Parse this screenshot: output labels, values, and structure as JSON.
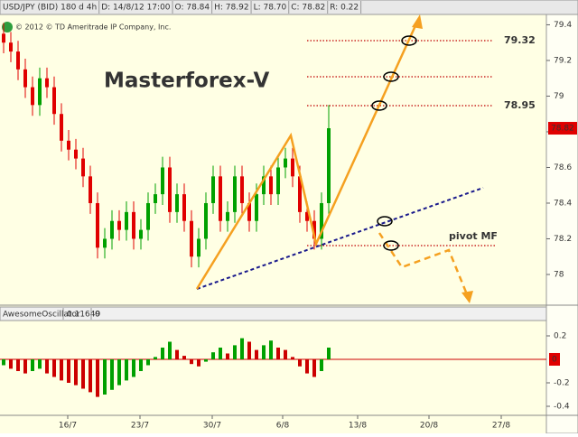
{
  "toolbar": [
    "USD/JPY (BID) 180 d 4h",
    "D: 14/8/12 17:00",
    "O: 78.84",
    "H: 78.92",
    "L: 78.70",
    "C: 78.82",
    "R: 0.22"
  ],
  "chart_data": [
    {
      "type": "candlestick",
      "title": "Masterforex-V",
      "subtitle": "© 2012 © TD Ameritrade IP Company, Inc.",
      "annotations": [
        "79.32",
        "78.95",
        "pivot MF"
      ],
      "up_color": "#00a000",
      "down_color": "#e00000",
      "xlim": [
        0,
        75.625
      ],
      "ylim": [
        77.843,
        79.458
      ],
      "yticks": [
        78,
        78.2,
        78.4,
        78.6,
        78.8,
        79,
        79.2,
        79.4
      ],
      "x": [
        0.5,
        1.5,
        2.5,
        3.5,
        4.5,
        5.5,
        6.5,
        7.5,
        8.5,
        9.5,
        10.5,
        11.5,
        12.5,
        13.5,
        14.5,
        15.5,
        16.5,
        17.5,
        18.5,
        19.5,
        20.5,
        21.5,
        22.5,
        23.5,
        24.5,
        25.5,
        26.5,
        27.5,
        28.5,
        29.5,
        30.5,
        31.5,
        32.5,
        33.5,
        34.5,
        35.5,
        36.5,
        37.5,
        38.5,
        39.5,
        40.5,
        41.5,
        42.5,
        43.5,
        44.5,
        45.5
      ],
      "open": [
        79.35,
        79.3,
        79.25,
        79.15,
        79.05,
        78.95,
        79.1,
        79.05,
        78.9,
        78.75,
        78.7,
        78.65,
        78.55,
        78.4,
        78.15,
        78.2,
        78.3,
        78.25,
        78.35,
        78.2,
        78.25,
        78.4,
        78.45,
        78.6,
        78.35,
        78.45,
        78.3,
        78.1,
        78.2,
        78.4,
        78.55,
        78.3,
        78.35,
        78.55,
        78.4,
        78.3,
        78.45,
        78.55,
        78.45,
        78.6,
        78.65,
        78.55,
        78.35,
        78.3,
        78.2,
        78.4
      ],
      "high": [
        79.41,
        79.36,
        79.31,
        79.21,
        79.11,
        79.16,
        79.16,
        79.11,
        78.96,
        78.81,
        78.76,
        78.71,
        78.61,
        78.46,
        78.26,
        78.36,
        78.36,
        78.41,
        78.41,
        78.31,
        78.46,
        78.51,
        78.66,
        78.66,
        78.51,
        78.51,
        78.36,
        78.26,
        78.46,
        78.61,
        78.61,
        78.41,
        78.61,
        78.61,
        78.46,
        78.51,
        78.61,
        78.61,
        78.66,
        78.71,
        78.71,
        78.61,
        78.41,
        78.36,
        78.46,
        78.95
      ],
      "low": [
        79.24,
        79.19,
        79.09,
        78.99,
        78.89,
        78.89,
        78.99,
        78.84,
        78.69,
        78.64,
        78.59,
        78.49,
        78.34,
        78.09,
        78.09,
        78.14,
        78.19,
        78.19,
        78.14,
        78.14,
        78.19,
        78.34,
        78.39,
        78.29,
        78.29,
        78.24,
        78.04,
        78.04,
        78.14,
        78.34,
        78.24,
        78.24,
        78.29,
        78.34,
        78.24,
        78.24,
        78.39,
        78.39,
        78.39,
        78.54,
        78.49,
        78.29,
        78.24,
        78.14,
        78.14,
        78.34
      ],
      "close": [
        79.3,
        79.25,
        79.15,
        79.05,
        78.95,
        79.1,
        79.05,
        78.9,
        78.75,
        78.7,
        78.65,
        78.55,
        78.4,
        78.15,
        78.2,
        78.3,
        78.25,
        78.35,
        78.2,
        78.25,
        78.4,
        78.45,
        78.6,
        78.35,
        78.45,
        78.3,
        78.1,
        78.2,
        78.4,
        78.55,
        78.3,
        78.35,
        78.55,
        78.4,
        78.3,
        78.45,
        78.55,
        78.45,
        78.6,
        78.65,
        78.55,
        78.35,
        78.3,
        78.2,
        78.4,
        78.82
      ]
    },
    {
      "type": "bar",
      "title": "AwesomeOscillator",
      "readout": [
        "0.11649",
        "0"
      ],
      "up_color": "#00a000",
      "down_color": "#cc0000",
      "xlim": [
        0,
        75.625
      ],
      "ylim": [
        -0.477,
        0.323
      ],
      "yticks": [
        0.2,
        -0.2,
        -0.4
      ],
      "xticks": [
        {
          "value": 9.375,
          "label": "16/7"
        },
        {
          "value": 19.375,
          "label": "23/7"
        },
        {
          "value": 29.375,
          "label": "30/7"
        },
        {
          "value": 39.125,
          "label": "6/8"
        },
        {
          "value": 49.5,
          "label": "13/8"
        },
        {
          "value": 59.375,
          "label": "20/8"
        },
        {
          "value": 69.375,
          "label": "27/8"
        }
      ],
      "x": [
        0.5,
        1.5,
        2.5,
        3.5,
        4.5,
        5.5,
        6.5,
        7.5,
        8.5,
        9.5,
        10.5,
        11.5,
        12.5,
        13.5,
        14.5,
        15.5,
        16.5,
        17.5,
        18.5,
        19.5,
        20.5,
        21.5,
        22.5,
        23.5,
        24.5,
        25.5,
        26.5,
        27.5,
        28.5,
        29.5,
        30.5,
        31.5,
        32.5,
        33.5,
        34.5,
        35.5,
        36.5,
        37.5,
        38.5,
        39.5,
        40.5,
        41.5,
        42.5,
        43.5,
        44.5,
        45.5
      ],
      "values": [
        -0.05,
        -0.08,
        -0.1,
        -0.12,
        -0.1,
        -0.08,
        -0.12,
        -0.15,
        -0.18,
        -0.2,
        -0.22,
        -0.25,
        -0.28,
        -0.32,
        -0.3,
        -0.26,
        -0.22,
        -0.18,
        -0.15,
        -0.1,
        -0.05,
        0.02,
        0.1,
        0.15,
        0.08,
        0.03,
        -0.04,
        -0.06,
        -0.02,
        0.06,
        0.1,
        0.05,
        0.12,
        0.18,
        0.15,
        0.08,
        0.12,
        0.16,
        0.1,
        0.08,
        0.02,
        -0.06,
        -0.12,
        -0.15,
        -0.1,
        0.1
      ]
    }
  ]
}
